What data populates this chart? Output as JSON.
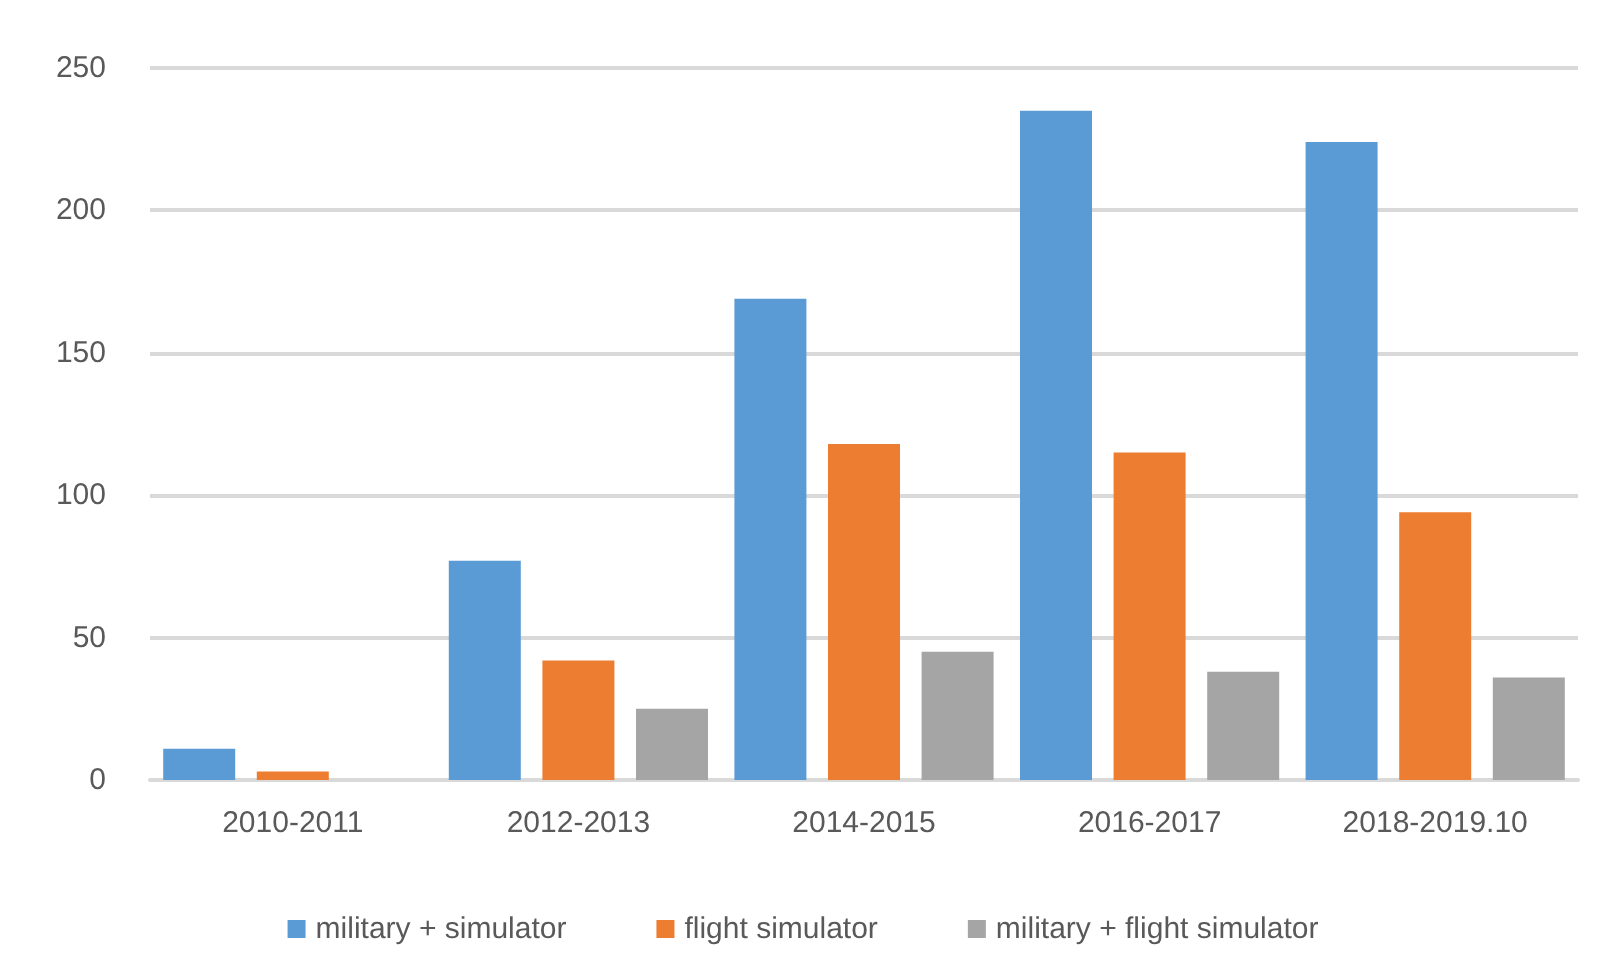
{
  "chart_data": {
    "type": "bar",
    "categories": [
      "2010-2011",
      "2012-2013",
      "2014-2015",
      "2016-2017",
      "2018-2019.10"
    ],
    "series": [
      {
        "name": "military + simulator",
        "color": "#5b9bd5",
        "values": [
          11,
          77,
          169,
          235,
          224
        ]
      },
      {
        "name": "flight simulator",
        "color": "#ed7d31",
        "values": [
          3,
          42,
          118,
          115,
          94
        ]
      },
      {
        "name": "military + flight simulator",
        "color": "#a5a5a5",
        "values": [
          0,
          25,
          45,
          38,
          36
        ]
      }
    ],
    "ylim": [
      0,
      250
    ],
    "yticks": [
      0,
      50,
      100,
      150,
      200,
      250
    ],
    "grid": "y",
    "legend": "bottom"
  }
}
